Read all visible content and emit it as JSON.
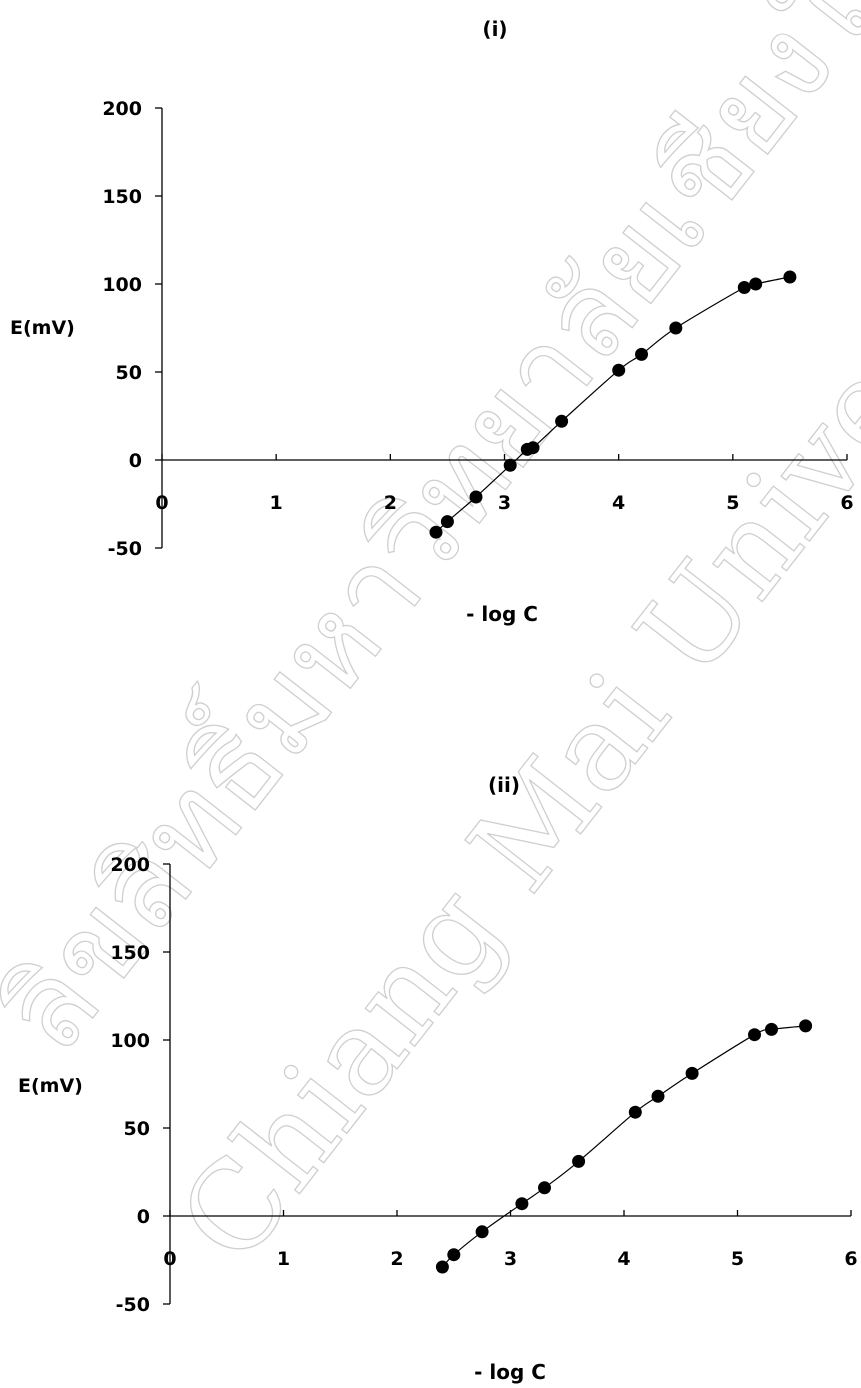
{
  "watermark": {
    "text_line1": "ลิขสิทธิ์มหาวิทยาลัยเชียงใหม่",
    "text_line2": "Chiang Mai University"
  },
  "chart_data": [
    {
      "type": "line",
      "title": "(i)",
      "xlabel": "- log C",
      "ylabel": "E(mV)",
      "xlim": [
        0,
        6
      ],
      "ylim": [
        -50,
        200
      ],
      "xticks": [
        0,
        1,
        2,
        3,
        4,
        5,
        6
      ],
      "yticks": [
        200,
        150,
        100,
        50,
        0,
        -50
      ],
      "grid": false,
      "legend": "none",
      "series": [
        {
          "marker": "circle",
          "x": [
            2.4,
            2.5,
            2.75,
            3.05,
            3.2,
            3.25,
            3.5,
            4.0,
            4.2,
            4.5,
            5.1,
            5.2,
            5.5
          ],
          "y": [
            -41,
            -35,
            -21,
            -3,
            6,
            7,
            22,
            51,
            60,
            75,
            98,
            100,
            104
          ]
        }
      ]
    },
    {
      "type": "line",
      "title": "(ii)",
      "xlabel": "- log C",
      "ylabel": "E(mV)",
      "xlim": [
        0,
        6
      ],
      "ylim": [
        -50,
        200
      ],
      "xticks": [
        0,
        1,
        2,
        3,
        4,
        5,
        6
      ],
      "yticks": [
        200,
        150,
        100,
        50,
        0,
        -50
      ],
      "grid": false,
      "legend": "none",
      "series": [
        {
          "marker": "circle",
          "x": [
            2.4,
            2.5,
            2.75,
            3.1,
            3.3,
            3.6,
            4.1,
            4.3,
            4.6,
            5.15,
            5.3,
            5.6
          ],
          "y": [
            -29,
            -22,
            -9,
            7,
            16,
            31,
            59,
            68,
            81,
            103,
            106,
            108
          ]
        }
      ]
    }
  ]
}
